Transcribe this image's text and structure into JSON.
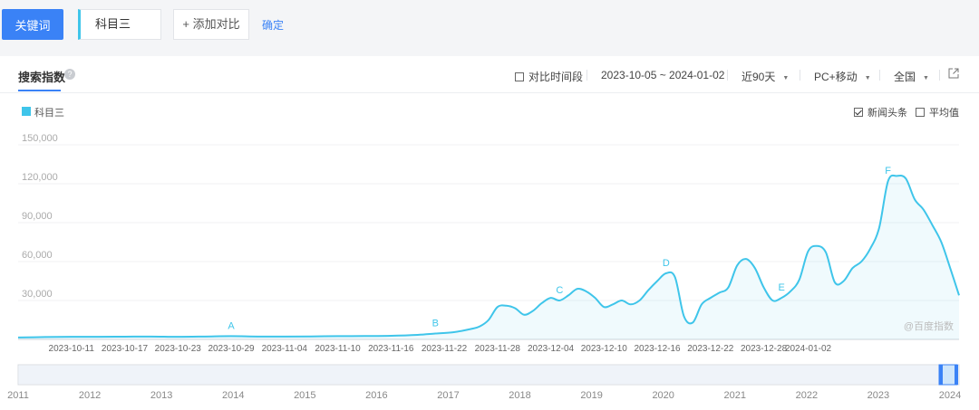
{
  "topbar": {
    "keyword_button": "关键词",
    "keyword_value": "科目三",
    "add_compare": "+ 添加对比",
    "confirm": "确定"
  },
  "toolbar": {
    "tab_title": "搜索指数",
    "help_icon": "?",
    "compare_period": "对比时间段",
    "date_range": "2023-10-05 ~ 2024-01-02",
    "period_select": "近90天",
    "device_select": "PC+移动",
    "region_select": "全国",
    "export_icon": "external-link-icon"
  },
  "options": {
    "news_headlines": "新闻头条",
    "news_checked": true,
    "average": "平均值",
    "average_checked": false
  },
  "watermark": "@百度指数",
  "colors": {
    "accent": "#3a82f6",
    "series": "#3fc5ea"
  },
  "chart_data": {
    "type": "area",
    "x_dates": [
      "2023-10-11",
      "2023-10-17",
      "2023-10-23",
      "2023-10-29",
      "2023-11-04",
      "2023-11-10",
      "2023-11-16",
      "2023-11-22",
      "2023-11-28",
      "2023-12-04",
      "2023-12-10",
      "2023-12-16",
      "2023-12-22",
      "2023-12-28",
      "2024-01-02"
    ],
    "ylim": [
      0,
      150000
    ],
    "yticks": [
      0,
      30000,
      60000,
      90000,
      120000,
      150000
    ],
    "ytick_labels": [
      "",
      "30,000",
      "60,000",
      "90,000",
      "120,000",
      "150,000"
    ],
    "grid": true,
    "series": [
      {
        "name": "科目三",
        "points": [
          [
            "2023-10-05",
            1500
          ],
          [
            "2023-10-08",
            1800
          ],
          [
            "2023-10-11",
            2000
          ],
          [
            "2023-10-14",
            2000
          ],
          [
            "2023-10-17",
            2100
          ],
          [
            "2023-10-20",
            2200
          ],
          [
            "2023-10-23",
            2000
          ],
          [
            "2023-10-26",
            2200
          ],
          [
            "2023-10-29",
            2500
          ],
          [
            "2023-11-01",
            2200
          ],
          [
            "2023-11-04",
            2200
          ],
          [
            "2023-11-07",
            2300
          ],
          [
            "2023-11-10",
            2500
          ],
          [
            "2023-11-13",
            2600
          ],
          [
            "2023-11-16",
            2800
          ],
          [
            "2023-11-19",
            3500
          ],
          [
            "2023-11-21",
            4500
          ],
          [
            "2023-11-23",
            5500
          ],
          [
            "2023-11-25",
            8000
          ],
          [
            "2023-11-26",
            10000
          ],
          [
            "2023-11-27",
            15000
          ],
          [
            "2023-11-28",
            25000
          ],
          [
            "2023-11-29",
            26000
          ],
          [
            "2023-11-30",
            24000
          ],
          [
            "2023-12-01",
            19000
          ],
          [
            "2023-12-02",
            22000
          ],
          [
            "2023-12-03",
            28000
          ],
          [
            "2023-12-04",
            32000
          ],
          [
            "2023-12-05",
            30000
          ],
          [
            "2023-12-06",
            34000
          ],
          [
            "2023-12-07",
            39000
          ],
          [
            "2023-12-08",
            37000
          ],
          [
            "2023-12-09",
            32000
          ],
          [
            "2023-12-10",
            25000
          ],
          [
            "2023-12-11",
            27000
          ],
          [
            "2023-12-12",
            30000
          ],
          [
            "2023-12-13",
            27000
          ],
          [
            "2023-12-14",
            30000
          ],
          [
            "2023-12-15",
            38000
          ],
          [
            "2023-12-16",
            45000
          ],
          [
            "2023-12-17",
            51000
          ],
          [
            "2023-12-18",
            48000
          ],
          [
            "2023-12-19",
            18000
          ],
          [
            "2023-12-20",
            13000
          ],
          [
            "2023-12-21",
            27000
          ],
          [
            "2023-12-22",
            32000
          ],
          [
            "2023-12-23",
            36000
          ],
          [
            "2023-12-24",
            40000
          ],
          [
            "2023-12-25",
            57000
          ],
          [
            "2023-12-26",
            62000
          ],
          [
            "2023-12-27",
            55000
          ],
          [
            "2023-12-28",
            40000
          ],
          [
            "2023-12-29",
            30000
          ],
          [
            "2023-12-30",
            32000
          ],
          [
            "2023-12-31",
            37000
          ],
          [
            "2024-01-01",
            46000
          ],
          [
            "2024-01-02",
            68000
          ],
          [
            "2024-01-03",
            72000
          ],
          [
            "2024-01-04",
            67000
          ],
          [
            "2024-01-05",
            44000
          ],
          [
            "2024-01-06",
            45000
          ],
          [
            "2024-01-07",
            55000
          ],
          [
            "2024-01-08",
            60000
          ],
          [
            "2024-01-09",
            70000
          ],
          [
            "2024-01-10",
            86000
          ],
          [
            "2024-01-11",
            122000
          ],
          [
            "2024-01-12",
            126000
          ],
          [
            "2024-01-13",
            124000
          ],
          [
            "2024-01-14",
            108000
          ],
          [
            "2024-01-15",
            100000
          ],
          [
            "2024-01-16",
            88000
          ],
          [
            "2024-01-17",
            75000
          ],
          [
            "2024-01-18",
            55000
          ],
          [
            "2024-01-19",
            34000
          ]
        ]
      }
    ],
    "annotations": [
      {
        "label": "A",
        "x": "2023-10-29"
      },
      {
        "label": "B",
        "x": "2023-11-21"
      },
      {
        "label": "C",
        "x": "2023-12-05"
      },
      {
        "label": "D",
        "x": "2023-12-17"
      },
      {
        "label": "E",
        "x": "2023-12-30"
      },
      {
        "label": "F",
        "x": "2024-01-11"
      }
    ],
    "overview_years": [
      "2011",
      "2012",
      "2013",
      "2014",
      "2015",
      "2016",
      "2017",
      "2018",
      "2019",
      "2020",
      "2021",
      "2022",
      "2023",
      "2024"
    ]
  }
}
